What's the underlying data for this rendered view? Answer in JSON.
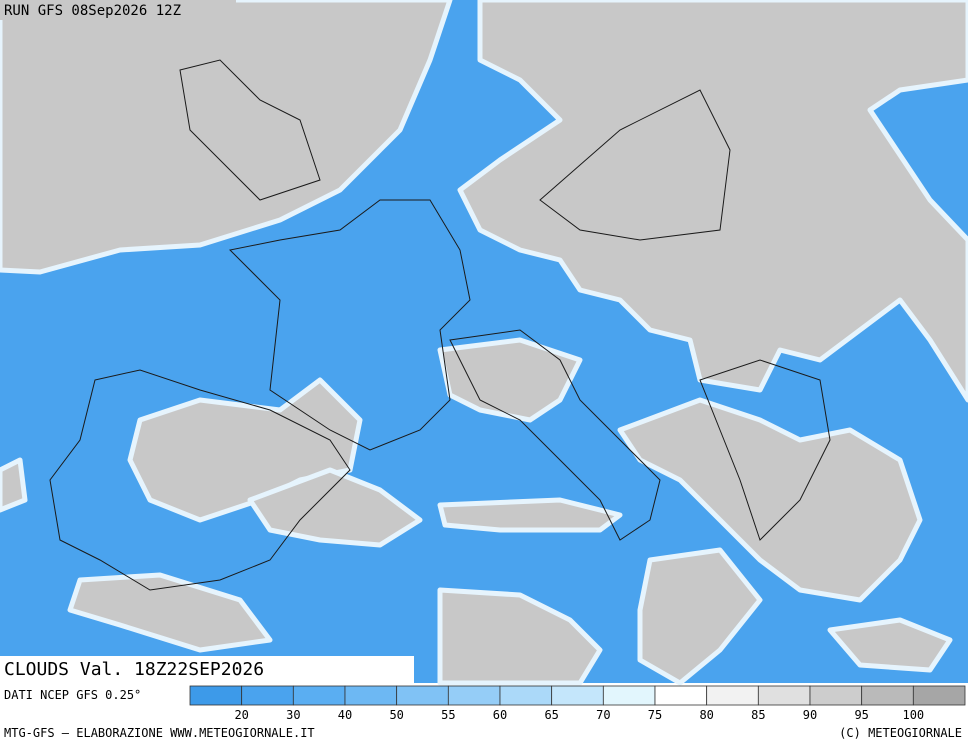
{
  "header": {
    "run": "RUN GFS 08Sep2026 12Z",
    "field": "CLOUDS Val. 18Z22SEP2026"
  },
  "legend": {
    "source": "DATI NCEP GFS 0.25°",
    "colors": [
      "#3d9ae9",
      "#4aa3ee",
      "#5aaef2",
      "#6db8f3",
      "#80c2f5",
      "#95cdf7",
      "#abd9f9",
      "#c4e6fb",
      "#e2f6fd",
      "#ffffff",
      "#f2f2f2",
      "#e0e0e0",
      "#cdcdcd",
      "#bababa",
      "#a6a6a6"
    ],
    "labels": [
      "20",
      "30",
      "40",
      "50",
      "55",
      "60",
      "65",
      "70",
      "75",
      "80",
      "85",
      "90",
      "95",
      "100"
    ]
  },
  "footer": {
    "credits": "MTG-GFS — ELABORAZIONE WWW.METEOGIORNALE.IT",
    "copyright": "(C) METEOGIORNALE"
  }
}
